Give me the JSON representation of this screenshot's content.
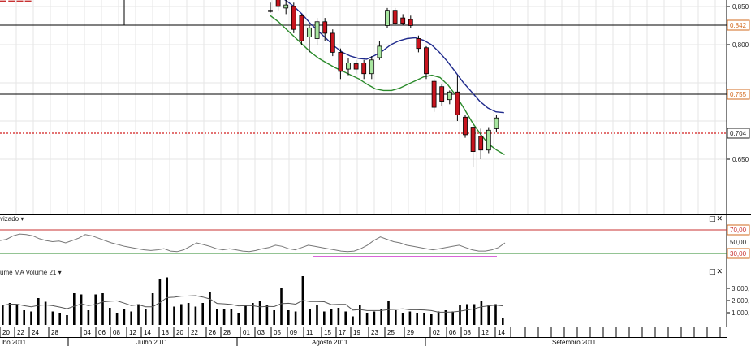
{
  "price_pane": {
    "price_levels": [
      {
        "value": "0,842",
        "color": "#d2691e"
      },
      {
        "value": "0,755",
        "color": "#d2691e"
      },
      {
        "value": "0,704",
        "color": "#222222"
      }
    ],
    "axis_ticks": [
      "0,850",
      "0,800",
      "0,650"
    ],
    "candles": [
      {
        "o": 0.845,
        "c": 0.845,
        "h": 0.855,
        "l": 0.842
      },
      {
        "o": 0.86,
        "c": 0.85,
        "h": 0.88,
        "l": 0.845
      },
      {
        "o": 0.848,
        "c": 0.852,
        "h": 0.87,
        "l": 0.84
      },
      {
        "o": 0.85,
        "c": 0.82,
        "h": 0.855,
        "l": 0.815
      },
      {
        "o": 0.838,
        "c": 0.805,
        "h": 0.84,
        "l": 0.8
      },
      {
        "o": 0.81,
        "c": 0.822,
        "h": 0.825,
        "l": 0.79
      },
      {
        "o": 0.808,
        "c": 0.83,
        "h": 0.835,
        "l": 0.8
      },
      {
        "o": 0.83,
        "c": 0.815,
        "h": 0.835,
        "l": 0.805
      },
      {
        "o": 0.815,
        "c": 0.79,
        "h": 0.82,
        "l": 0.785
      },
      {
        "o": 0.79,
        "c": 0.765,
        "h": 0.795,
        "l": 0.755
      },
      {
        "o": 0.768,
        "c": 0.776,
        "h": 0.782,
        "l": 0.76
      },
      {
        "o": 0.775,
        "c": 0.768,
        "h": 0.78,
        "l": 0.762
      },
      {
        "o": 0.776,
        "c": 0.762,
        "h": 0.78,
        "l": 0.755
      },
      {
        "o": 0.762,
        "c": 0.78,
        "h": 0.785,
        "l": 0.755
      },
      {
        "o": 0.783,
        "c": 0.798,
        "h": 0.805,
        "l": 0.78
      },
      {
        "o": 0.825,
        "c": 0.845,
        "h": 0.848,
        "l": 0.822
      },
      {
        "o": 0.845,
        "c": 0.828,
        "h": 0.848,
        "l": 0.825
      },
      {
        "o": 0.835,
        "c": 0.828,
        "h": 0.84,
        "l": 0.825
      },
      {
        "o": 0.833,
        "c": 0.825,
        "h": 0.838,
        "l": 0.822
      },
      {
        "o": 0.808,
        "c": 0.795,
        "h": 0.812,
        "l": 0.79
      },
      {
        "o": 0.796,
        "c": 0.762,
        "h": 0.798,
        "l": 0.755
      },
      {
        "o": 0.752,
        "c": 0.718,
        "h": 0.755,
        "l": 0.712
      },
      {
        "o": 0.745,
        "c": 0.726,
        "h": 0.748,
        "l": 0.72
      },
      {
        "o": 0.728,
        "c": 0.738,
        "h": 0.74,
        "l": 0.722
      },
      {
        "o": 0.738,
        "c": 0.708,
        "h": 0.76,
        "l": 0.7
      },
      {
        "o": 0.705,
        "c": 0.682,
        "h": 0.708,
        "l": 0.678
      },
      {
        "o": 0.692,
        "c": 0.66,
        "h": 0.695,
        "l": 0.64
      },
      {
        "o": 0.68,
        "c": 0.662,
        "h": 0.69,
        "l": 0.65
      },
      {
        "o": 0.662,
        "c": 0.688,
        "h": 0.692,
        "l": 0.658
      },
      {
        "o": 0.69,
        "c": 0.704,
        "h": 0.708,
        "l": 0.685
      }
    ],
    "ma_blue": [
      0.865,
      0.858,
      0.85,
      0.84,
      0.828,
      0.818,
      0.808,
      0.798,
      0.79,
      0.785,
      0.782,
      0.781,
      0.786,
      0.792,
      0.8,
      0.805,
      0.808,
      0.809,
      0.806,
      0.8,
      0.79,
      0.778,
      0.764,
      0.75,
      0.738,
      0.726,
      0.717,
      0.712,
      0.711
    ],
    "ma_green": [
      0.838,
      0.83,
      0.82,
      0.81,
      0.8,
      0.79,
      0.782,
      0.776,
      0.77,
      0.765,
      0.76,
      0.755,
      0.748,
      0.742,
      0.74,
      0.74,
      0.743,
      0.748,
      0.753,
      0.758,
      0.76,
      0.757,
      0.747,
      0.733,
      0.716,
      0.698,
      0.683,
      0.67,
      0.662,
      0.656
    ],
    "ma_red_top": [
      0.905,
      0.898,
      0.893,
      0.892,
      0.895,
      0.898,
      0.898,
      0.897
    ]
  },
  "indicator_pane": {
    "title": "vizado ▾",
    "levels": [
      "70,00",
      "50,00",
      "30,00"
    ],
    "line": [
      52,
      54,
      60,
      63,
      62,
      60,
      55,
      52,
      50,
      51,
      48,
      52,
      56,
      62,
      60,
      56,
      52,
      48,
      45,
      42,
      40,
      38,
      36,
      35,
      36,
      38,
      34,
      33,
      36,
      42,
      48,
      45,
      42,
      38,
      36,
      38,
      36,
      34,
      33,
      35,
      38,
      40,
      44,
      42,
      38,
      36,
      40,
      44,
      42,
      40,
      38,
      36,
      34,
      33,
      34,
      38,
      44,
      52,
      58,
      54,
      50,
      48,
      44,
      42,
      40,
      38,
      36,
      38,
      40,
      42,
      44,
      40,
      36,
      34,
      34,
      36,
      40,
      48
    ]
  },
  "volume_pane": {
    "title": "ume  MA Volume  21 ▾",
    "axis_ticks": [
      "3.000,",
      "2.000,",
      "1.000,"
    ],
    "bars": [
      1600,
      1800,
      1700,
      1200,
      1100,
      2200,
      1900,
      1100,
      1000,
      800,
      2600,
      2500,
      1200,
      2500,
      2600,
      1400,
      1000,
      1300,
      1100,
      1700,
      1300,
      2600,
      3800,
      3900,
      1500,
      1700,
      1800,
      1500,
      1800,
      2700,
      1300,
      1300,
      1300,
      1000,
      1600,
      1800,
      2000,
      1600,
      1200,
      3000,
      1200,
      1100,
      4000,
      1300,
      1600,
      1100,
      1300,
      1400,
      1100,
      700,
      1600,
      1000,
      1100,
      1300,
      2000,
      1200,
      1000,
      1100,
      1000,
      1000,
      900,
      1100,
      1200,
      1100,
      1600,
      1700,
      1700,
      2000,
      1600,
      1700,
      600
    ]
  },
  "time_axis": {
    "day_labels": [
      "20",
      "22",
      "24",
      "28",
      "04",
      "06",
      "08",
      "12",
      "14",
      "18",
      "20",
      "22",
      "26",
      "28",
      "01",
      "03",
      "05",
      "09",
      "11",
      "15",
      "17",
      "19",
      "23",
      "25",
      "29",
      "02",
      "06",
      "08",
      "12",
      "14"
    ],
    "month_labels": [
      "lho 2011",
      "Julho 2011",
      "Agosto 2011",
      "Setembro 2011"
    ]
  },
  "controls": {
    "pane_buttons": "□✕"
  },
  "colors": {
    "up_candle": "#a8e6a0",
    "down_candle": "#c8141e",
    "ma_blue": "#1f2a8c",
    "ma_green": "#2a8a2a",
    "ma_red": "#d21e1e",
    "level_line": "#c83232",
    "grid": "#e6e6e6"
  }
}
